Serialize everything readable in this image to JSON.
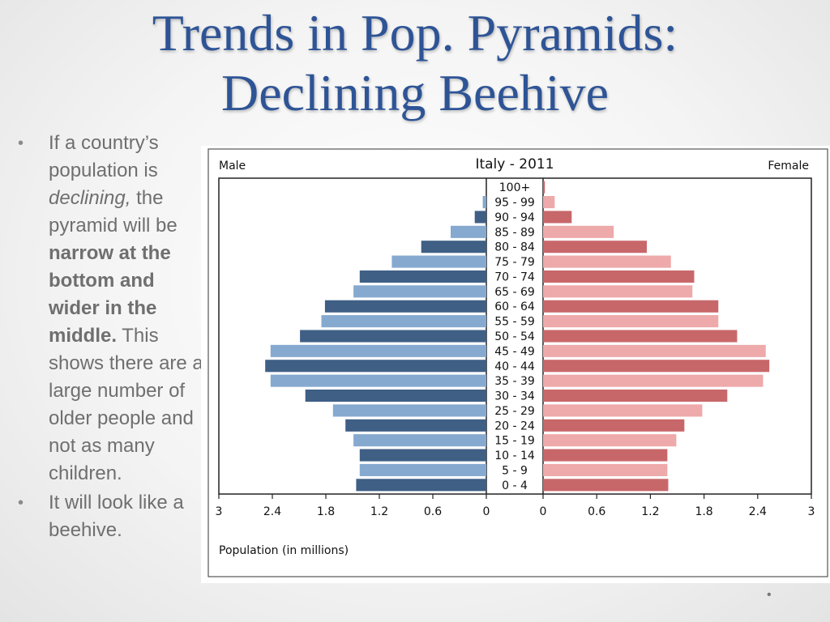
{
  "slide": {
    "title_line1": "Trends in Pop. Pyramids:",
    "title_line2": "Declining Beehive",
    "bullet1": {
      "t1": "If a country’s population is ",
      "t2": "declining,",
      "t3": " the pyramid will be ",
      "t4": "narrow at the bottom and wider in the middle.",
      "t5": " This shows there are a large number of older people and not as many children."
    },
    "bullet2": "It  will look like a beehive.",
    "nav_dot": "•"
  },
  "colors": {
    "male_dark": "#3f5f85",
    "male_light": "#86a9cf",
    "female_dark": "#c8676a",
    "female_light": "#eea9aa",
    "title": "#2e5496"
  },
  "chart_data": {
    "type": "bar",
    "title": "Italy - 2011",
    "left_label": "Male",
    "right_label": "Female",
    "xlabel": "Population (in millions)",
    "xlim": [
      0,
      3
    ],
    "ticks": [
      3,
      2.4,
      1.8,
      1.2,
      0.6,
      0
    ],
    "categories": [
      "100+",
      "95 - 99",
      "90 - 94",
      "85 - 89",
      "80 - 84",
      "75 - 79",
      "70 - 74",
      "65 - 69",
      "60 - 64",
      "55 - 59",
      "50 - 54",
      "45 - 49",
      "40 - 44",
      "35 - 39",
      "30 - 34",
      "25 - 29",
      "20 - 24",
      "15 - 19",
      "10 - 14",
      "5 - 9",
      "0 - 4"
    ],
    "series": [
      {
        "name": "Male",
        "values": [
          0.0,
          0.04,
          0.13,
          0.4,
          0.73,
          1.06,
          1.42,
          1.49,
          1.81,
          1.85,
          2.09,
          2.42,
          2.48,
          2.42,
          2.03,
          1.72,
          1.58,
          1.49,
          1.42,
          1.42,
          1.46
        ]
      },
      {
        "name": "Female",
        "values": [
          0.02,
          0.13,
          0.32,
          0.79,
          1.16,
          1.43,
          1.69,
          1.67,
          1.96,
          1.96,
          2.17,
          2.49,
          2.53,
          2.46,
          2.06,
          1.78,
          1.58,
          1.49,
          1.39,
          1.39,
          1.4
        ]
      }
    ]
  }
}
